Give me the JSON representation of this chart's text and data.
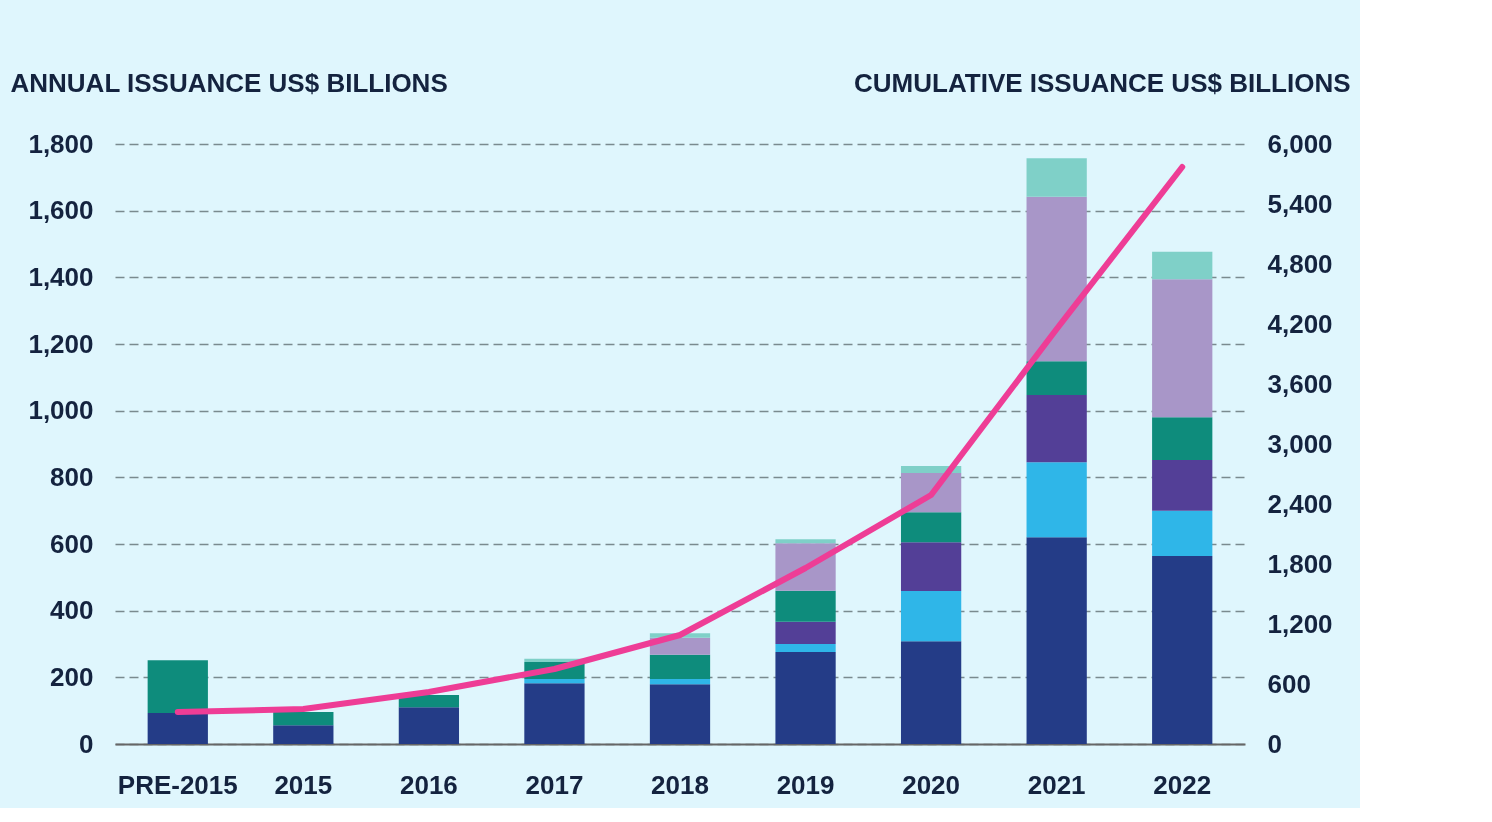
{
  "chart_data": {
    "type": "bar",
    "stacked": true,
    "ylabel": "ANNUAL ISSUANCE US$ BILLIONS",
    "y2label": "CUMULATIVE ISSUANCE US$ BILLIONS",
    "categories": [
      "PRE-2015",
      "2015",
      "2016",
      "2017",
      "2018",
      "2019",
      "2020",
      "2021",
      "2022"
    ],
    "series": [
      {
        "color": "#243c87",
        "values": [
          93,
          56,
          110,
          182,
          179,
          276,
          308,
          620,
          564
        ]
      },
      {
        "color": "#2fb6e8",
        "values": [
          0,
          0,
          0,
          13,
          16,
          24,
          151,
          225,
          136
        ]
      },
      {
        "color": "#533f97",
        "values": [
          0,
          0,
          0,
          0,
          0,
          67,
          146,
          202,
          152
        ]
      },
      {
        "color": "#0e8c7c",
        "values": [
          158,
          40,
          37,
          51,
          73,
          93,
          90,
          101,
          128
        ]
      },
      {
        "color": "#a896c8",
        "values": [
          0,
          0,
          0,
          0,
          51,
          142,
          118,
          494,
          414
        ]
      },
      {
        "color": "#7fd0c8",
        "values": [
          0,
          0,
          0,
          10,
          13,
          12,
          21,
          115,
          83
        ]
      },
      {
        "type": "line",
        "axis": "y2",
        "color": "#ee3d96",
        "values": [
          320,
          350,
          520,
          750,
          1090,
          1760,
          2490,
          4150,
          5770
        ]
      }
    ],
    "ylim": [
      0,
      1800
    ],
    "yticks": [
      0,
      200,
      400,
      600,
      800,
      {
        "value": 1000,
        "label": "1,000"
      },
      {
        "value": 1200,
        "label": "1,200"
      },
      {
        "value": 1400,
        "label": "1,400"
      },
      {
        "value": 1600,
        "label": "1,600"
      },
      {
        "value": 1800,
        "label": "1,800"
      }
    ],
    "y2lim": [
      0,
      6000
    ],
    "y2ticks": [
      0,
      600,
      {
        "value": 1200,
        "label": "1,200"
      },
      {
        "value": 1800,
        "label": "1,800"
      },
      {
        "value": 2400,
        "label": "2,400"
      },
      {
        "value": 3000,
        "label": "3,000"
      },
      {
        "value": 3600,
        "label": "3,600"
      },
      {
        "value": 4200,
        "label": "4,200"
      },
      {
        "value": 4800,
        "label": "4,800"
      },
      {
        "value": 5400,
        "label": "5,400"
      },
      {
        "value": 6000,
        "label": "6,000"
      }
    ],
    "grid": "y",
    "marker": "none",
    "line_style": "solid"
  }
}
